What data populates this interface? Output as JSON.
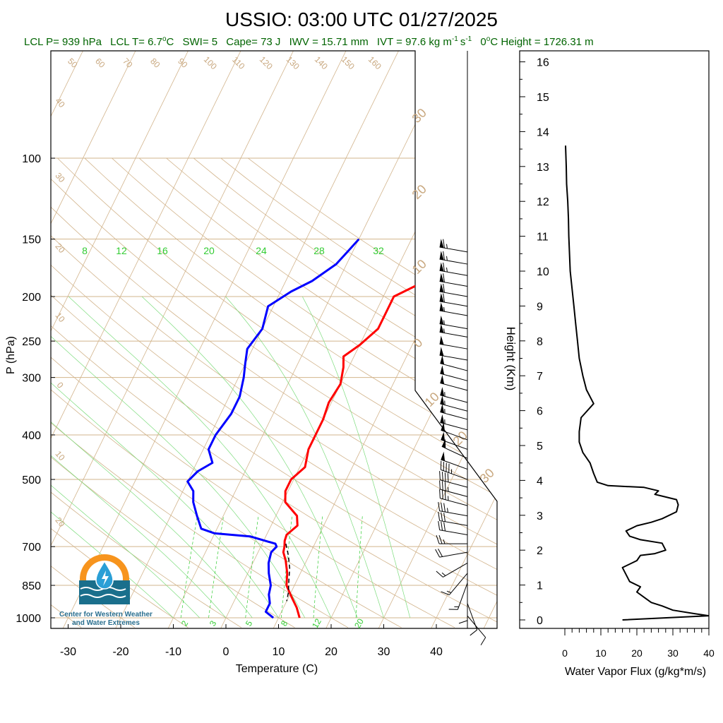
{
  "chart_data": {
    "type": "line",
    "title": "USSIO: 03:00 UTC 01/27/2025",
    "subtitle": {
      "lcl_p": "LCL P= 939 hPa",
      "lcl_t": "LCL T= 6.7",
      "lcl_t_unit": "C",
      "swi": "SWI= 5",
      "cape": "Cape= 73 J",
      "iwv": "IWV = 15.71 mm",
      "ivt": "IVT = 97.6 kg m",
      "ivt_unit_s": "s",
      "zero_c_height": "0",
      "zero_c_height_rest": "C Height = 1726.31 m",
      "minus_one": "-1"
    },
    "skewt": {
      "xlabel": "Temperature (C)",
      "ylabel": "P (hPa)",
      "x_ticks": [
        "-30",
        "-20",
        "-10",
        "0",
        "10",
        "20",
        "30",
        "40"
      ],
      "x_tick_values": [
        -30,
        -20,
        -10,
        0,
        10,
        20,
        30,
        40
      ],
      "p_ticks": [
        "100",
        "150",
        "200",
        "250",
        "300",
        "400",
        "500",
        "700",
        "850",
        "1000"
      ],
      "p_tick_values": [
        100,
        150,
        200,
        250,
        300,
        400,
        500,
        700,
        850,
        1000
      ],
      "mixing_ratio_labels": [
        "8",
        "12",
        "16",
        "20",
        "24",
        "28",
        "32"
      ],
      "mixing_ratio_low_labels": [
        "2",
        "3",
        "5",
        "8",
        "12",
        "20"
      ],
      "dry_adiabat_labels": [
        "50",
        "60",
        "70",
        "80",
        "90",
        "100",
        "110",
        "120",
        "130",
        "140",
        "150",
        "160"
      ],
      "left_isotherm_labels": [
        "40",
        "30",
        "20",
        "10",
        "0",
        "10",
        "20"
      ],
      "right_isotherm_labels": [
        "30",
        "20",
        "10",
        "0",
        "10",
        "20",
        "30"
      ],
      "series": [
        {
          "key": "temperature",
          "color": "#ff0000",
          "points": [
            [
              14,
              1000
            ],
            [
              12.5,
              950
            ],
            [
              10.5,
              900
            ],
            [
              8.5,
              850
            ],
            [
              7.5,
              800
            ],
            [
              6,
              750
            ],
            [
              4.8,
              720
            ],
            [
              4.5,
              700
            ],
            [
              4,
              680
            ],
            [
              3.8,
              660
            ],
            [
              5,
              630
            ],
            [
              4,
              600
            ],
            [
              0.5,
              560
            ],
            [
              -0.5,
              530
            ],
            [
              -0.5,
              500
            ],
            [
              1,
              470
            ],
            [
              0,
              430
            ],
            [
              0,
              400
            ],
            [
              0,
              370
            ],
            [
              -0.5,
              340
            ],
            [
              0,
              310
            ],
            [
              -1,
              285
            ],
            [
              -2,
              270
            ],
            [
              0,
              255
            ],
            [
              2,
              235
            ],
            [
              2,
              215
            ],
            [
              2,
              200
            ],
            [
              5,
              190
            ],
            [
              8,
              180
            ],
            [
              9,
              170
            ],
            [
              10,
              160
            ],
            [
              10,
              150
            ]
          ]
        },
        {
          "key": "dewpoint",
          "color": "#0000ff",
          "points": [
            [
              9,
              1000
            ],
            [
              7,
              970
            ],
            [
              7,
              930
            ],
            [
              6,
              890
            ],
            [
              5.5,
              850
            ],
            [
              4,
              800
            ],
            [
              3,
              760
            ],
            [
              2.5,
              720
            ],
            [
              3,
              700
            ],
            [
              2.5,
              690
            ],
            [
              -3,
              665
            ],
            [
              -10,
              655
            ],
            [
              -13,
              640
            ],
            [
              -15,
              600
            ],
            [
              -17,
              560
            ],
            [
              -18,
              530
            ],
            [
              -20,
              505
            ],
            [
              -19,
              480
            ],
            [
              -17,
              460
            ],
            [
              -19,
              430
            ],
            [
              -19,
              400
            ],
            [
              -18,
              360
            ],
            [
              -18,
              330
            ],
            [
              -19,
              300
            ],
            [
              -20,
              280
            ],
            [
              -21,
              260
            ],
            [
              -20,
              235
            ],
            [
              -21,
              210
            ],
            [
              -18,
              195
            ],
            [
              -15,
              185
            ],
            [
              -12,
              170
            ],
            [
              -11,
              160
            ],
            [
              -10,
              150
            ]
          ]
        },
        {
          "key": "parcel",
          "color": "#000000",
          "dashed": true,
          "points": [
            [
              4.5,
              690
            ],
            [
              6,
              730
            ],
            [
              7.5,
              780
            ],
            [
              8.5,
              830
            ],
            [
              9.5,
              880
            ],
            [
              10,
              920
            ]
          ]
        }
      ]
    },
    "height_axis": {
      "label": "Height (Km)",
      "ticks": [
        "0",
        "1",
        "2",
        "3",
        "4",
        "5",
        "6",
        "7",
        "8",
        "9",
        "10",
        "11",
        "12",
        "13",
        "14",
        "15",
        "16"
      ],
      "tick_values": [
        0,
        1,
        2,
        3,
        4,
        5,
        6,
        7,
        8,
        9,
        10,
        11,
        12,
        13,
        14,
        15,
        16
      ]
    },
    "wvflux": {
      "xlabel": "Water Vapor Flux (g/kg*m/s)",
      "x_ticks": [
        "0",
        "10",
        "20",
        "30",
        "40"
      ],
      "x_tick_values": [
        0,
        10,
        20,
        30,
        40
      ],
      "xlim": [
        0,
        40
      ],
      "ylim_km": [
        0,
        16
      ],
      "color": "#000000",
      "points": [
        [
          16,
          0
        ],
        [
          40,
          0.12
        ],
        [
          36,
          0.18
        ],
        [
          30,
          0.28
        ],
        [
          27,
          0.4
        ],
        [
          24,
          0.5
        ],
        [
          22,
          0.65
        ],
        [
          20,
          0.8
        ],
        [
          21,
          0.95
        ],
        [
          18,
          1.1
        ],
        [
          17,
          1.3
        ],
        [
          16,
          1.5
        ],
        [
          20,
          1.7
        ],
        [
          21,
          1.85
        ],
        [
          25,
          1.9
        ],
        [
          28,
          2.0
        ],
        [
          27,
          2.2
        ],
        [
          21,
          2.3
        ],
        [
          18,
          2.4
        ],
        [
          17,
          2.55
        ],
        [
          20,
          2.7
        ],
        [
          24,
          2.8
        ],
        [
          27,
          2.9
        ],
        [
          31,
          3.1
        ],
        [
          31.5,
          3.3
        ],
        [
          31,
          3.45
        ],
        [
          27,
          3.55
        ],
        [
          25,
          3.6
        ],
        [
          26,
          3.7
        ],
        [
          22,
          3.8
        ],
        [
          12,
          3.85
        ],
        [
          9,
          3.95
        ],
        [
          8,
          4.2
        ],
        [
          7,
          4.5
        ],
        [
          5,
          4.8
        ],
        [
          4,
          5.1
        ],
        [
          4,
          5.4
        ],
        [
          4.5,
          5.8
        ],
        [
          8,
          6.2
        ],
        [
          6,
          6.6
        ],
        [
          5,
          7.0
        ],
        [
          4,
          7.5
        ],
        [
          3.5,
          8.0
        ],
        [
          3,
          8.5
        ],
        [
          2.5,
          9.0
        ],
        [
          2,
          9.5
        ],
        [
          1.5,
          10.0
        ],
        [
          1.3,
          10.5
        ],
        [
          1.1,
          11.0
        ],
        [
          1.0,
          11.5
        ],
        [
          0.8,
          12.0
        ],
        [
          0.5,
          12.5
        ],
        [
          0.4,
          13.0
        ],
        [
          0.3,
          13.3
        ],
        [
          0.2,
          13.6
        ]
      ]
    },
    "wind_barbs": {
      "color": "#000000",
      "levels": [
        {
          "p": 160,
          "dir": 280,
          "spd": 65
        },
        {
          "p": 170,
          "dir": 280,
          "spd": 65
        },
        {
          "p": 180,
          "dir": 280,
          "spd": 65
        },
        {
          "p": 190,
          "dir": 280,
          "spd": 60
        },
        {
          "p": 200,
          "dir": 280,
          "spd": 60
        },
        {
          "p": 210,
          "dir": 280,
          "spd": 60
        },
        {
          "p": 220,
          "dir": 280,
          "spd": 55
        },
        {
          "p": 235,
          "dir": 280,
          "spd": 55
        },
        {
          "p": 245,
          "dir": 280,
          "spd": 55
        },
        {
          "p": 260,
          "dir": 280,
          "spd": 50
        },
        {
          "p": 275,
          "dir": 280,
          "spd": 50
        },
        {
          "p": 290,
          "dir": 285,
          "spd": 50
        },
        {
          "p": 305,
          "dir": 285,
          "spd": 50
        },
        {
          "p": 320,
          "dir": 285,
          "spd": 50
        },
        {
          "p": 340,
          "dir": 285,
          "spd": 55
        },
        {
          "p": 355,
          "dir": 285,
          "spd": 55
        },
        {
          "p": 370,
          "dir": 285,
          "spd": 55
        },
        {
          "p": 390,
          "dir": 285,
          "spd": 55
        },
        {
          "p": 410,
          "dir": 290,
          "spd": 50
        },
        {
          "p": 430,
          "dir": 290,
          "spd": 50
        },
        {
          "p": 450,
          "dir": 295,
          "spd": 50
        },
        {
          "p": 475,
          "dir": 290,
          "spd": 50
        },
        {
          "p": 500,
          "dir": 290,
          "spd": 45
        },
        {
          "p": 520,
          "dir": 285,
          "spd": 40
        },
        {
          "p": 545,
          "dir": 285,
          "spd": 35
        },
        {
          "p": 570,
          "dir": 285,
          "spd": 35
        },
        {
          "p": 600,
          "dir": 280,
          "spd": 35
        },
        {
          "p": 630,
          "dir": 280,
          "spd": 30
        },
        {
          "p": 660,
          "dir": 280,
          "spd": 30
        },
        {
          "p": 690,
          "dir": 270,
          "spd": 25
        },
        {
          "p": 720,
          "dir": 260,
          "spd": 20
        },
        {
          "p": 760,
          "dir": 240,
          "spd": 15
        },
        {
          "p": 800,
          "dir": 220,
          "spd": 15
        },
        {
          "p": 840,
          "dir": 200,
          "spd": 15
        },
        {
          "p": 880,
          "dir": 180,
          "spd": 10
        },
        {
          "p": 930,
          "dir": 160,
          "spd": 10
        },
        {
          "p": 990,
          "dir": 140,
          "spd": 10
        }
      ]
    }
  },
  "logo": {
    "line1": "Center for Western Weather",
    "line2": "and Water Extremes",
    "colors": {
      "sun": "#f7941d",
      "water": "#1a6f8c",
      "drop": "#2a9fd6"
    }
  }
}
